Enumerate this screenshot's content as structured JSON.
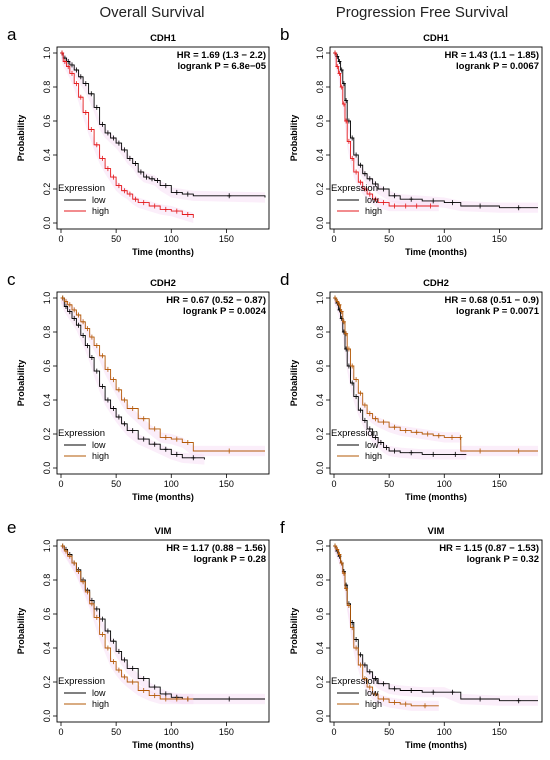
{
  "figure": {
    "column_titles": [
      "Overall Survival",
      "Progression Free Survival"
    ]
  },
  "chart_data": [
    {
      "type": "line",
      "panel_label": "a",
      "title": "CDH1",
      "hr_text": "HR = 1.69 (1.3 − 2.2)",
      "logrank_text": "logrank P = 6.8e−05",
      "xlabel": "Time (months)",
      "ylabel": "Probability",
      "xlim": [
        0,
        185
      ],
      "ylim": [
        0,
        1.0
      ],
      "xticks": [
        0,
        50,
        100,
        150
      ],
      "yticks": [
        0.0,
        0.2,
        0.4,
        0.6,
        0.8,
        1.0
      ],
      "grid": false,
      "legend": {
        "title": "Expression",
        "position": "bottom-left"
      },
      "series": [
        {
          "name": "low",
          "color": "#000000",
          "x": [
            0,
            2,
            5,
            8,
            12,
            16,
            20,
            25,
            30,
            35,
            40,
            45,
            50,
            55,
            60,
            65,
            70,
            75,
            80,
            85,
            90,
            100,
            110,
            120,
            185
          ],
          "y": [
            1.0,
            0.97,
            0.95,
            0.93,
            0.9,
            0.86,
            0.82,
            0.76,
            0.68,
            0.58,
            0.53,
            0.5,
            0.47,
            0.43,
            0.38,
            0.35,
            0.3,
            0.27,
            0.26,
            0.25,
            0.22,
            0.18,
            0.17,
            0.16,
            0.15
          ]
        },
        {
          "name": "high",
          "color": "#e41a1c",
          "x": [
            0,
            2,
            5,
            8,
            12,
            16,
            20,
            25,
            30,
            35,
            40,
            45,
            50,
            55,
            60,
            65,
            70,
            80,
            90,
            100,
            110,
            120
          ],
          "y": [
            1.0,
            0.95,
            0.92,
            0.88,
            0.82,
            0.74,
            0.65,
            0.55,
            0.46,
            0.38,
            0.32,
            0.27,
            0.22,
            0.19,
            0.17,
            0.14,
            0.12,
            0.1,
            0.08,
            0.07,
            0.05,
            0.03
          ]
        }
      ]
    },
    {
      "type": "line",
      "panel_label": "b",
      "title": "CDH1",
      "hr_text": "HR = 1.43 (1.1 − 1.85)",
      "logrank_text": "logrank P = 0.0067",
      "xlabel": "Time (months)",
      "ylabel": "Probability",
      "xlim": [
        0,
        185
      ],
      "ylim": [
        0,
        1.0
      ],
      "xticks": [
        0,
        50,
        100,
        150
      ],
      "yticks": [
        0.0,
        0.2,
        0.4,
        0.6,
        0.8,
        1.0
      ],
      "grid": false,
      "legend": {
        "title": "Expression",
        "position": "bottom-left"
      },
      "series": [
        {
          "name": "low",
          "color": "#000000",
          "x": [
            0,
            2,
            4,
            6,
            8,
            10,
            12,
            15,
            18,
            22,
            26,
            30,
            35,
            40,
            50,
            60,
            80,
            100,
            115,
            150,
            185
          ],
          "y": [
            1.0,
            0.98,
            0.95,
            0.9,
            0.82,
            0.72,
            0.6,
            0.5,
            0.4,
            0.34,
            0.29,
            0.26,
            0.23,
            0.2,
            0.16,
            0.14,
            0.13,
            0.12,
            0.1,
            0.09,
            0.09
          ]
        },
        {
          "name": "high",
          "color": "#e41a1c",
          "x": [
            0,
            2,
            4,
            6,
            8,
            10,
            12,
            15,
            18,
            22,
            26,
            30,
            35,
            40,
            50,
            60,
            70,
            80,
            95
          ],
          "y": [
            1.0,
            0.92,
            0.88,
            0.8,
            0.7,
            0.6,
            0.48,
            0.38,
            0.3,
            0.24,
            0.2,
            0.17,
            0.14,
            0.12,
            0.1,
            0.1,
            0.1,
            0.1,
            0.1
          ]
        }
      ]
    },
    {
      "type": "line",
      "panel_label": "c",
      "title": "CDH2",
      "hr_text": "HR = 0.67 (0.52 − 0.87)",
      "logrank_text": "logrank P = 0.0024",
      "xlabel": "Time (months)",
      "ylabel": "Probability",
      "xlim": [
        0,
        185
      ],
      "ylim": [
        0,
        1.0
      ],
      "xticks": [
        0,
        50,
        100,
        150
      ],
      "yticks": [
        0.0,
        0.2,
        0.4,
        0.6,
        0.8,
        1.0
      ],
      "grid": false,
      "legend": {
        "title": "Expression",
        "position": "bottom-left"
      },
      "series": [
        {
          "name": "low",
          "color": "#000000",
          "x": [
            0,
            3,
            6,
            10,
            14,
            18,
            22,
            26,
            30,
            35,
            40,
            45,
            50,
            55,
            60,
            70,
            80,
            90,
            100,
            110,
            130
          ],
          "y": [
            1.0,
            0.95,
            0.92,
            0.88,
            0.84,
            0.78,
            0.72,
            0.65,
            0.57,
            0.48,
            0.4,
            0.35,
            0.3,
            0.26,
            0.22,
            0.17,
            0.14,
            0.11,
            0.08,
            0.06,
            0.05
          ]
        },
        {
          "name": "high",
          "color": "#b35806",
          "x": [
            0,
            3,
            6,
            10,
            14,
            18,
            22,
            26,
            30,
            35,
            40,
            45,
            50,
            55,
            60,
            70,
            80,
            90,
            100,
            110,
            120,
            185
          ],
          "y": [
            1.0,
            0.98,
            0.96,
            0.93,
            0.9,
            0.86,
            0.82,
            0.77,
            0.72,
            0.66,
            0.58,
            0.52,
            0.46,
            0.4,
            0.35,
            0.29,
            0.23,
            0.18,
            0.17,
            0.15,
            0.1,
            0.1
          ]
        }
      ]
    },
    {
      "type": "line",
      "panel_label": "d",
      "title": "CDH2",
      "hr_text": "HR = 0.68 (0.51 − 0.9)",
      "logrank_text": "logrank P = 0.0071",
      "xlabel": "Time (months)",
      "ylabel": "Probability",
      "xlim": [
        0,
        185
      ],
      "ylim": [
        0,
        1.0
      ],
      "xticks": [
        0,
        50,
        100,
        150
      ],
      "yticks": [
        0.0,
        0.2,
        0.4,
        0.6,
        0.8,
        1.0
      ],
      "grid": false,
      "legend": {
        "title": "Expression",
        "position": "bottom-left"
      },
      "series": [
        {
          "name": "low",
          "color": "#000000",
          "x": [
            0,
            2,
            4,
            6,
            8,
            10,
            12,
            15,
            18,
            22,
            26,
            30,
            35,
            40,
            45,
            50,
            60,
            80,
            100,
            120
          ],
          "y": [
            1.0,
            0.97,
            0.93,
            0.88,
            0.8,
            0.7,
            0.6,
            0.5,
            0.42,
            0.34,
            0.28,
            0.23,
            0.18,
            0.15,
            0.12,
            0.1,
            0.09,
            0.08,
            0.08,
            0.08
          ]
        },
        {
          "name": "high",
          "color": "#b35806",
          "x": [
            0,
            2,
            4,
            6,
            8,
            10,
            12,
            15,
            18,
            22,
            26,
            30,
            35,
            40,
            50,
            60,
            70,
            80,
            90,
            100,
            114,
            115,
            150,
            185
          ],
          "y": [
            1.0,
            0.98,
            0.96,
            0.92,
            0.86,
            0.79,
            0.7,
            0.6,
            0.52,
            0.44,
            0.37,
            0.32,
            0.29,
            0.27,
            0.24,
            0.22,
            0.21,
            0.2,
            0.19,
            0.18,
            0.18,
            0.1,
            0.1,
            0.1
          ]
        }
      ]
    },
    {
      "type": "line",
      "panel_label": "e",
      "title": "VIM",
      "hr_text": "HR = 1.17 (0.88 − 1.56)",
      "logrank_text": "logrank P = 0.28",
      "xlabel": "Time (months)",
      "ylabel": "Probability",
      "xlim": [
        0,
        185
      ],
      "ylim": [
        0,
        1.0
      ],
      "xticks": [
        0,
        50,
        100,
        150
      ],
      "yticks": [
        0.0,
        0.2,
        0.4,
        0.6,
        0.8,
        1.0
      ],
      "grid": false,
      "legend": {
        "title": "Expression",
        "position": "bottom-left"
      },
      "series": [
        {
          "name": "low",
          "color": "#000000",
          "x": [
            0,
            3,
            6,
            10,
            14,
            18,
            22,
            26,
            30,
            35,
            40,
            45,
            50,
            55,
            60,
            70,
            80,
            90,
            100,
            110,
            120,
            185
          ],
          "y": [
            1.0,
            0.98,
            0.95,
            0.9,
            0.86,
            0.8,
            0.74,
            0.68,
            0.63,
            0.57,
            0.5,
            0.44,
            0.38,
            0.33,
            0.28,
            0.22,
            0.17,
            0.13,
            0.11,
            0.1,
            0.1,
            0.1
          ]
        },
        {
          "name": "high",
          "color": "#b35806",
          "x": [
            0,
            3,
            6,
            10,
            14,
            18,
            22,
            26,
            30,
            35,
            40,
            45,
            50,
            55,
            60,
            70,
            80,
            90,
            100,
            110,
            120
          ],
          "y": [
            1.0,
            0.97,
            0.94,
            0.9,
            0.85,
            0.79,
            0.73,
            0.66,
            0.58,
            0.48,
            0.4,
            0.32,
            0.27,
            0.23,
            0.2,
            0.15,
            0.12,
            0.1,
            0.1,
            0.1,
            0.1
          ]
        }
      ]
    },
    {
      "type": "line",
      "panel_label": "f",
      "title": "VIM",
      "hr_text": "HR = 1.15 (0.87 − 1.53)",
      "logrank_text": "logrank P = 0.32",
      "xlabel": "Time (months)",
      "ylabel": "Probability",
      "xlim": [
        0,
        185
      ],
      "ylim": [
        0,
        1.0
      ],
      "xticks": [
        0,
        50,
        100,
        150
      ],
      "yticks": [
        0.0,
        0.2,
        0.4,
        0.6,
        0.8,
        1.0
      ],
      "grid": false,
      "legend": {
        "title": "Expression",
        "position": "bottom-left"
      },
      "series": [
        {
          "name": "low",
          "color": "#000000",
          "x": [
            0,
            2,
            4,
            6,
            8,
            10,
            12,
            15,
            18,
            22,
            26,
            30,
            35,
            40,
            50,
            60,
            80,
            100,
            115,
            150,
            185
          ],
          "y": [
            1.0,
            0.97,
            0.94,
            0.9,
            0.85,
            0.77,
            0.66,
            0.55,
            0.45,
            0.36,
            0.3,
            0.26,
            0.22,
            0.19,
            0.16,
            0.15,
            0.14,
            0.14,
            0.1,
            0.09,
            0.09
          ]
        },
        {
          "name": "high",
          "color": "#b35806",
          "x": [
            0,
            2,
            4,
            6,
            8,
            10,
            12,
            15,
            18,
            22,
            26,
            30,
            35,
            40,
            50,
            60,
            70,
            95
          ],
          "y": [
            1.0,
            0.98,
            0.95,
            0.9,
            0.84,
            0.75,
            0.65,
            0.52,
            0.4,
            0.3,
            0.22,
            0.17,
            0.13,
            0.1,
            0.08,
            0.07,
            0.06,
            0.06
          ]
        }
      ]
    }
  ]
}
